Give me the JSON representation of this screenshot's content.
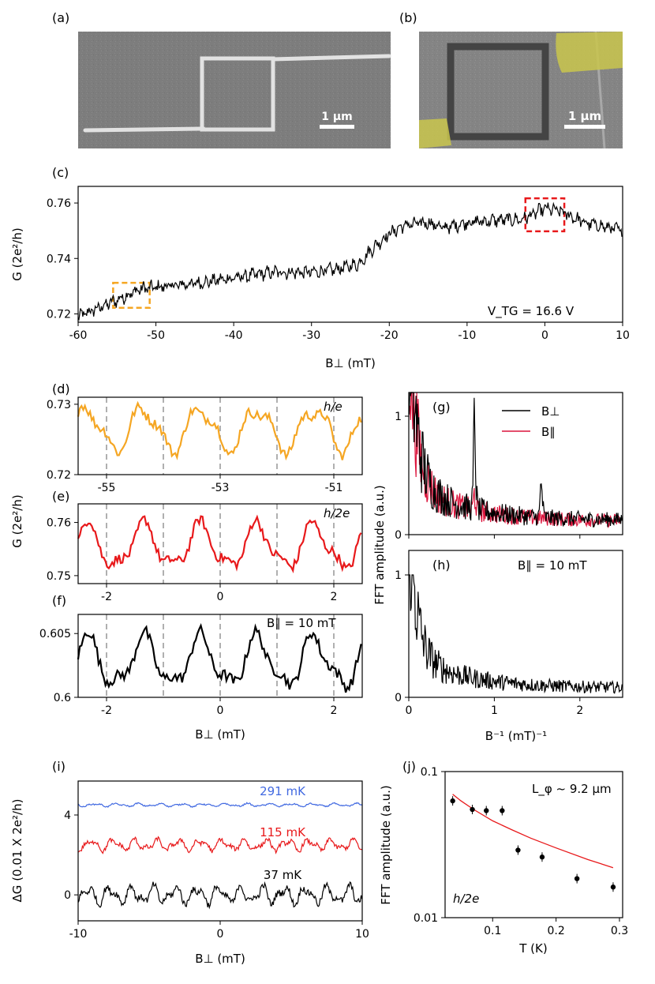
{
  "panel_labels": {
    "a": "(a)",
    "b": "(b)",
    "c": "(c)",
    "d": "(d)",
    "e": "(e)",
    "f": "(f)",
    "g": "(g)",
    "h": "(h)",
    "i": "(i)",
    "j": "(j)"
  },
  "images": {
    "a": {
      "scale_bar": "1 μm",
      "description": "SEM image of square ring device"
    },
    "b": {
      "scale_bar": "1 μm",
      "description": "SEM image of ring with contacts"
    }
  },
  "colors": {
    "black": "#000000",
    "orange": "#f5a623",
    "red": "#e8191b",
    "blue": "#4169e1",
    "crimson": "#dc143c",
    "grid": "#b0b0b0"
  },
  "chart_data": [
    {
      "id": "c",
      "type": "line",
      "xlabel": "B⊥ (mT)",
      "ylabel": "G (2e²/h)",
      "xlim": [
        -60,
        10
      ],
      "ylim": [
        0.717,
        0.766
      ],
      "xticks": [
        -60,
        -50,
        -40,
        -30,
        -20,
        -10,
        0,
        10
      ],
      "xticklabels": [
        "-60",
        "-50",
        "-40",
        "-30",
        "-20",
        "-10",
        "0",
        "10"
      ],
      "yticks": [
        0.72,
        0.74,
        0.76
      ],
      "yticklabels": [
        "0.72",
        "0.74",
        "0.76"
      ],
      "annotation": "V_TG = 16.6 V",
      "baseline": [
        [
          -60,
          0.719
        ],
        [
          -55,
          0.725
        ],
        [
          -52,
          0.729
        ],
        [
          -45,
          0.731
        ],
        [
          -40,
          0.733
        ],
        [
          -35,
          0.735
        ],
        [
          -30,
          0.735
        ],
        [
          -27,
          0.736
        ],
        [
          -24,
          0.738
        ],
        [
          -22,
          0.744
        ],
        [
          -20,
          0.749
        ],
        [
          -18,
          0.752
        ],
        [
          -15,
          0.753
        ],
        [
          -13,
          0.751
        ],
        [
          -10,
          0.753
        ],
        [
          -5,
          0.754
        ],
        [
          -3,
          0.754
        ],
        [
          0,
          0.758
        ],
        [
          2,
          0.757
        ],
        [
          5,
          0.753
        ],
        [
          10,
          0.75
        ]
      ],
      "boxes": [
        {
          "x": [
            -55.5,
            -50.8
          ],
          "y": [
            0.7222,
            0.7312
          ],
          "color": "orange"
        },
        {
          "x": [
            -2.5,
            2.5
          ],
          "y": [
            0.7498,
            0.7617
          ],
          "color": "red"
        }
      ]
    },
    {
      "id": "d",
      "type": "line",
      "ylabel": "",
      "xlim": [
        -55.5,
        -50.5
      ],
      "ylim": [
        0.72,
        0.731
      ],
      "xticks": [
        -55,
        -53,
        -51
      ],
      "xticklabels": [
        "-55",
        "-53",
        "-51"
      ],
      "yticks": [
        0.72,
        0.73
      ],
      "yticklabels": [
        "0.72",
        "0.73"
      ],
      "vlines": [
        -55,
        -54,
        -53,
        -52,
        -51
      ],
      "annotation": "h/e",
      "color": "orange",
      "baseline": [
        [
          -55.5,
          0.7265
        ],
        [
          -50.5,
          0.7265
        ]
      ]
    },
    {
      "id": "e",
      "type": "line",
      "xlim": [
        -2.5,
        2.5
      ],
      "ylim": [
        0.7485,
        0.7635
      ],
      "xticks": [
        -2,
        0,
        2
      ],
      "xticklabels": [
        "-2",
        "0",
        "2"
      ],
      "yticks": [
        0.75,
        0.76
      ],
      "yticklabels": [
        "0.75",
        "0.76"
      ],
      "vlines": [
        -2,
        -1,
        0,
        1,
        2
      ],
      "annotation": "h/2e",
      "color": "red",
      "baseline": [
        [
          -2.5,
          0.7555
        ],
        [
          2.5,
          0.7555
        ]
      ]
    },
    {
      "id": "f",
      "type": "line",
      "xlabel": "B⊥ (mT)",
      "xlim": [
        -2.5,
        2.5
      ],
      "ylim": [
        0.6,
        0.6065
      ],
      "xticks": [
        -2,
        0,
        2
      ],
      "xticklabels": [
        "-2",
        "0",
        "2"
      ],
      "yticks": [
        0.6,
        0.605
      ],
      "yticklabels": [
        "0.6",
        "0.605"
      ],
      "vlines": [
        -2,
        -1,
        0,
        1,
        2
      ],
      "annotation": "B∥ = 10 mT",
      "color": "black",
      "baseline": [
        [
          -2.5,
          0.6028
        ],
        [
          2.5,
          0.6028
        ]
      ]
    },
    {
      "id": "g",
      "type": "line",
      "xlim": [
        0,
        2.5
      ],
      "ylim": [
        0,
        1.2
      ],
      "yticks": [
        0,
        1
      ],
      "yticklabels": [
        "0",
        "1"
      ],
      "legend": [
        "B⊥",
        "B∥"
      ],
      "legend_position": "top-right",
      "series": [
        {
          "name": "B⊥",
          "color": "black"
        },
        {
          "name": "B∥",
          "color": "crimson"
        }
      ]
    },
    {
      "id": "h",
      "type": "line",
      "xlabel": "B⁻¹ (mT)⁻¹",
      "xlim": [
        0,
        2.5
      ],
      "ylim": [
        0,
        1.2
      ],
      "xticks": [
        0,
        1,
        2
      ],
      "xticklabels": [
        "0",
        "1",
        "2"
      ],
      "yticks": [
        0,
        1
      ],
      "yticklabels": [
        "0",
        "1"
      ],
      "annotation": "B∥ = 10 mT"
    },
    {
      "id": "gh",
      "ylabel": "FFT amplitude (a.u.)"
    },
    {
      "id": "i",
      "type": "line",
      "xlabel": "B⊥ (mT)",
      "ylabel": "ΔG (0.01 X 2e²/h)",
      "xlim": [
        -10,
        10
      ],
      "ylim": [
        -1.3,
        5.7
      ],
      "xticks": [
        -10,
        0,
        10
      ],
      "xticklabels": [
        "-10",
        "0",
        "10"
      ],
      "yticks": [
        0,
        4
      ],
      "yticklabels": [
        "0",
        "4"
      ],
      "series": [
        {
          "name": "291 mK",
          "offset": 4.5,
          "amp": 0.1,
          "color": "blue"
        },
        {
          "name": "115 mK",
          "offset": 2.5,
          "amp": 0.35,
          "color": "red"
        },
        {
          "name": "37 mK",
          "offset": 0,
          "amp": 0.55,
          "color": "black"
        }
      ]
    },
    {
      "id": "j",
      "type": "scatter",
      "xlabel": "T (K)",
      "ylabel": "FFT amplitude (a.u.)",
      "yscale": "log",
      "xlim": [
        0.025,
        0.305
      ],
      "ylim": [
        0.01,
        0.1
      ],
      "xticks": [
        0.1,
        0.2,
        0.3
      ],
      "xticklabels": [
        "0.1",
        "0.2",
        "0.3"
      ],
      "yticks": [
        0.01,
        0.1
      ],
      "yticklabels": [
        "0.01",
        "0.1"
      ],
      "annotation": "L_φ ~ 9.2 μm",
      "annotation2": "h/2e",
      "points": [
        {
          "x": 0.037,
          "y": 0.063
        },
        {
          "x": 0.068,
          "y": 0.055
        },
        {
          "x": 0.09,
          "y": 0.054
        },
        {
          "x": 0.115,
          "y": 0.054
        },
        {
          "x": 0.14,
          "y": 0.029
        },
        {
          "x": 0.178,
          "y": 0.026
        },
        {
          "x": 0.233,
          "y": 0.0185
        },
        {
          "x": 0.29,
          "y": 0.0162
        }
      ],
      "fit": [
        {
          "x": 0.037,
          "y": 0.07
        },
        {
          "x": 0.05,
          "y": 0.063
        },
        {
          "x": 0.07,
          "y": 0.055
        },
        {
          "x": 0.1,
          "y": 0.046
        },
        {
          "x": 0.13,
          "y": 0.04
        },
        {
          "x": 0.16,
          "y": 0.035
        },
        {
          "x": 0.2,
          "y": 0.03
        },
        {
          "x": 0.25,
          "y": 0.025
        },
        {
          "x": 0.29,
          "y": 0.022
        }
      ]
    }
  ]
}
